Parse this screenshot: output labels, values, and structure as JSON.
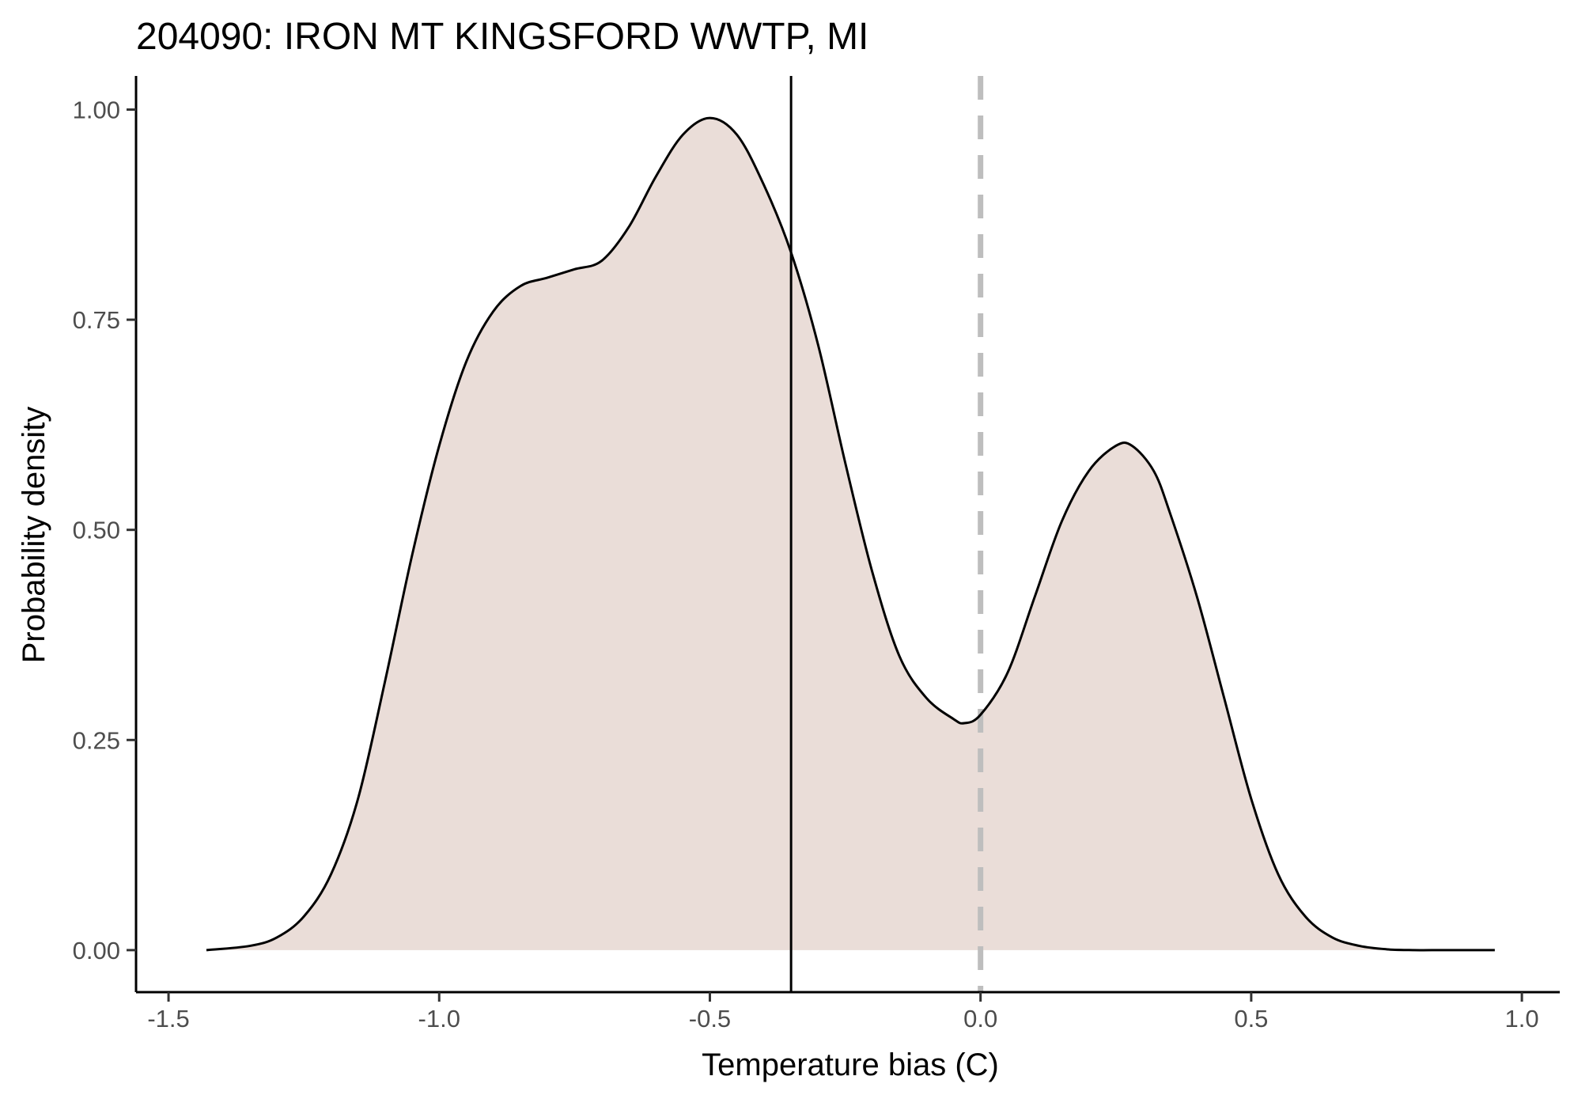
{
  "chart_data": {
    "type": "area",
    "title": "204090: IRON MT KINGSFORD WWTP, MI",
    "xlabel": "Temperature bias (C)",
    "ylabel": "Probability density",
    "xlim": [
      -1.56,
      1.07
    ],
    "ylim": [
      -0.05,
      1.04
    ],
    "x_ticks": [
      -1.5,
      -1.0,
      -0.5,
      0.0,
      0.5,
      1.0
    ],
    "x_tick_labels": [
      "-1.5",
      "-1.0",
      "-0.5",
      "0.0",
      "0.5",
      "1.0"
    ],
    "y_ticks": [
      0.0,
      0.25,
      0.5,
      0.75,
      1.0
    ],
    "y_tick_labels": [
      "0.00",
      "0.25",
      "0.50",
      "0.75",
      "1.00"
    ],
    "grid": false,
    "legend": "none",
    "series": [
      {
        "x": [
          -1.43,
          -1.35,
          -1.3,
          -1.25,
          -1.2,
          -1.15,
          -1.1,
          -1.05,
          -1.0,
          -0.95,
          -0.9,
          -0.85,
          -0.8,
          -0.75,
          -0.7,
          -0.65,
          -0.6,
          -0.55,
          -0.5,
          -0.45,
          -0.4,
          -0.35,
          -0.3,
          -0.25,
          -0.2,
          -0.15,
          -0.1,
          -0.05,
          -0.03,
          0.0,
          0.05,
          0.1,
          0.15,
          0.2,
          0.25,
          0.28,
          0.32,
          0.35,
          0.4,
          0.45,
          0.5,
          0.55,
          0.6,
          0.65,
          0.7,
          0.75,
          0.8,
          0.85,
          0.9,
          0.95
        ],
        "y": [
          0.0,
          0.005,
          0.015,
          0.04,
          0.09,
          0.18,
          0.32,
          0.47,
          0.6,
          0.7,
          0.76,
          0.79,
          0.8,
          0.81,
          0.82,
          0.86,
          0.92,
          0.97,
          0.99,
          0.97,
          0.91,
          0.83,
          0.72,
          0.58,
          0.45,
          0.35,
          0.3,
          0.275,
          0.27,
          0.28,
          0.33,
          0.42,
          0.51,
          0.57,
          0.6,
          0.6,
          0.57,
          0.52,
          0.42,
          0.3,
          0.18,
          0.09,
          0.04,
          0.015,
          0.005,
          0.001,
          0.0,
          0.0,
          0.0,
          0.0
        ]
      }
    ],
    "reference_lines": [
      {
        "x": -0.35,
        "style": "solid",
        "color": "#000000"
      },
      {
        "x": 0.0,
        "style": "dashed",
        "color": "#bebebe"
      }
    ],
    "fill_color": "#eaddd8",
    "line_color": "#000000"
  }
}
